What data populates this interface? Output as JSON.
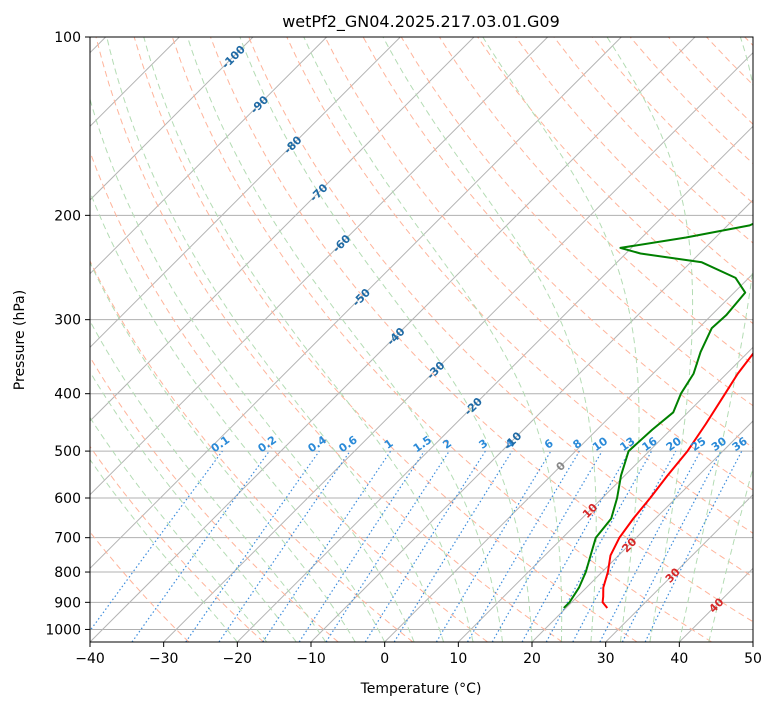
{
  "chart_data": {
    "type": "line",
    "chart_kind": "skew-T log-P diagram",
    "title": "wetPf2_GN04.2025.217.03.01.G09",
    "xlabel": "Temperature (°C)",
    "ylabel": "Pressure (hPa)",
    "xlim": [
      -40,
      50
    ],
    "ylim": [
      1050,
      100
    ],
    "y_scale": "log",
    "x_ticks": [
      -40,
      -30,
      -20,
      -10,
      0,
      10,
      20,
      30,
      40,
      50
    ],
    "y_ticks": [
      100,
      200,
      300,
      400,
      500,
      600,
      700,
      800,
      900,
      1000
    ],
    "grid": true,
    "series": [
      {
        "key": "temperature",
        "color": "#ff0000",
        "points": [
          [
            25.6,
            920
          ],
          [
            24.2,
            900
          ],
          [
            23.5,
            880
          ],
          [
            22.3,
            850
          ],
          [
            20.8,
            800
          ],
          [
            18.9,
            750
          ],
          [
            17.7,
            700
          ],
          [
            17.0,
            650
          ],
          [
            16.5,
            600
          ],
          [
            15.8,
            550
          ],
          [
            15.2,
            500
          ],
          [
            14.0,
            450
          ],
          [
            12.5,
            400
          ],
          [
            11.5,
            370
          ],
          [
            10.8,
            340
          ],
          [
            8.6,
            300
          ],
          [
            6.2,
            280
          ],
          [
            4.8,
            265
          ],
          [
            5.0,
            255
          ],
          [
            6.5,
            245
          ],
          [
            9.5,
            230
          ],
          [
            11.0,
            215
          ],
          [
            11.5,
            200
          ],
          [
            12.6,
            185
          ],
          [
            13.6,
            170
          ],
          [
            14.4,
            155
          ],
          [
            15.1,
            140
          ],
          [
            16.3,
            125
          ],
          [
            17.4,
            115
          ],
          [
            19.0,
            105
          ],
          [
            19.5,
            100
          ]
        ]
      },
      {
        "key": "dewpoint",
        "color": "#008000",
        "points": [
          [
            19.7,
            920
          ],
          [
            19.7,
            900
          ],
          [
            19.0,
            850
          ],
          [
            17.8,
            800
          ],
          [
            16.2,
            750
          ],
          [
            14.5,
            700
          ],
          [
            14.0,
            650
          ],
          [
            12.0,
            600
          ],
          [
            9.5,
            550
          ],
          [
            7.2,
            500
          ],
          [
            7.5,
            460
          ],
          [
            8.0,
            430
          ],
          [
            6.5,
            400
          ],
          [
            5.5,
            370
          ],
          [
            3.5,
            340
          ],
          [
            1.8,
            310
          ],
          [
            2.0,
            295
          ],
          [
            1.5,
            270
          ],
          [
            -1.8,
            255
          ],
          [
            -8.5,
            240
          ],
          [
            -18.0,
            232
          ],
          [
            -21.5,
            227
          ],
          [
            -14.0,
            218
          ],
          [
            -7.0,
            208
          ],
          [
            -5.5,
            200
          ],
          [
            -6.5,
            192
          ],
          [
            -8.5,
            182
          ],
          [
            -9.0,
            170
          ],
          [
            -8.2,
            155
          ],
          [
            -7.5,
            138
          ],
          [
            -7.8,
            125
          ],
          [
            -7.0,
            118
          ],
          [
            -5.0,
            113
          ],
          [
            -3.0,
            107
          ],
          [
            -2.0,
            103
          ],
          [
            -1.0,
            100
          ]
        ]
      }
    ],
    "reference_lines": {
      "isotherm_color": "#b4b4b4",
      "dry_adiabat_color": "#ffb49b",
      "moist_adiabat_color": "#b4dcb4",
      "mixing_ratio_color": "#3c8cdc",
      "grid_color": "#b0b0b0"
    },
    "annotations": {
      "isotherm_labels": [
        "-100",
        "-90",
        "-80",
        "-70",
        "-60",
        "-50",
        "-40",
        "-30",
        "-20",
        "-10"
      ],
      "isotherm_label_color": "#1f6aa5",
      "mixing_ratio_labels": [
        "0.1",
        "0.2",
        "0.4",
        "0.6",
        "1",
        "1.5",
        "2",
        "3",
        "4",
        "6",
        "8",
        "10",
        "13",
        "16",
        "20",
        "25",
        "30",
        "36"
      ],
      "mixing_ratio_label_color": "#2a8ad8",
      "warm_isotherm_labels": [
        "0",
        "10",
        "20",
        "30",
        "40"
      ],
      "warm_label_colors": [
        "#888888",
        "#d62728",
        "#d62728",
        "#d62728",
        "#d62728"
      ]
    }
  }
}
